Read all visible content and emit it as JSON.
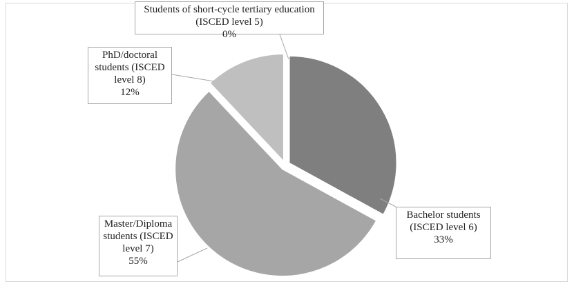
{
  "chart_data": {
    "type": "pie",
    "categories": [
      "Students of short-cycle tertiary education (ISCED level 5)",
      "Bachelor students (ISCED level 6)",
      "Master/Diploma students (ISCED level 7)",
      "PhD/doctoral students (ISCED level 8)"
    ],
    "values": [
      0,
      33,
      55,
      12
    ],
    "value_labels": [
      "0%",
      "33%",
      "55%",
      "12%"
    ],
    "colors": [
      "#595959",
      "#7f7f7f",
      "#a6a6a6",
      "#bfbfbf"
    ]
  }
}
